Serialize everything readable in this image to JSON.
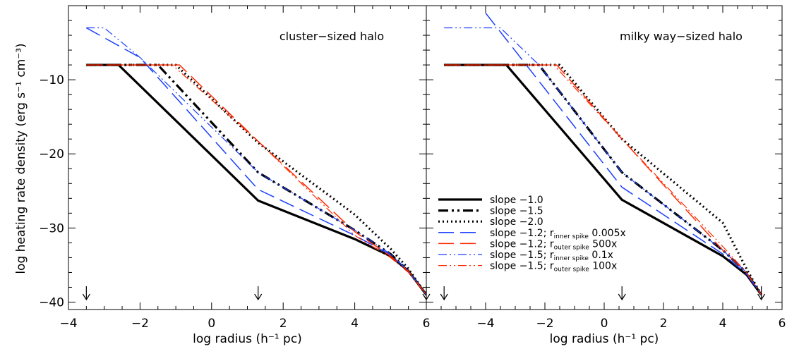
{
  "figure": {
    "ylabel": "log heating rate density (erg s⁻¹ cm⁻³)",
    "xlabel": "log radius (h⁻¹ pc)"
  },
  "legend": [
    {
      "label": "slope −1.0",
      "color": "#000000",
      "style": "solid-thick"
    },
    {
      "label": "slope −1.5",
      "color": "#000000",
      "style": "dashdotdot-thick"
    },
    {
      "label": "slope −2.0",
      "color": "#000000",
      "style": "dotted-thick"
    },
    {
      "label": "slope −1.2; r",
      "sub": "inner spike",
      "tail": " 0.005x",
      "color": "#1a3fff",
      "style": "longdash"
    },
    {
      "label": "slope −1.2; r",
      "sub": "outer spike",
      "tail": " 500x",
      "color": "#ff2a00",
      "style": "longdash"
    },
    {
      "label": "slope −1.5; r",
      "sub": "inner spike",
      "tail": " 0.1x",
      "color": "#1a3fff",
      "style": "dashdotdot"
    },
    {
      "label": "slope −1.5; r",
      "sub": "outer spike",
      "tail": " 100x",
      "color": "#ff2a00",
      "style": "dashdotdot"
    }
  ],
  "chart_data": [
    {
      "type": "line",
      "title": "",
      "annotation": "cluster−sized halo",
      "xlabel": "log radius (h⁻¹ pc)",
      "ylabel": "log heating rate density (erg s⁻¹ cm⁻³)",
      "xlim": [
        -4,
        6
      ],
      "ylim": [
        -41,
        0
      ],
      "xticks": [
        -4,
        -2,
        0,
        2,
        4,
        6
      ],
      "yticks": [
        -10,
        -20,
        -30,
        -40
      ],
      "markers_x": [
        -3.5,
        1.3,
        6.0
      ],
      "series": [
        {
          "name": "slope −1.0",
          "x": [
            -3.5,
            -2.6,
            1.3,
            4.0,
            5.0,
            5.5,
            6.0
          ],
          "y": [
            -8,
            -8,
            -26.3,
            -31.5,
            -33.8,
            -35.8,
            -39
          ]
        },
        {
          "name": "slope −1.5",
          "x": [
            -3.5,
            -1.5,
            1.3,
            4.0,
            5.0,
            5.5,
            6.0
          ],
          "y": [
            -8,
            -8,
            -22.5,
            -30.3,
            -33.5,
            -35.8,
            -39
          ]
        },
        {
          "name": "slope −2.0",
          "x": [
            -3.5,
            -1.0,
            1.3,
            4.0,
            5.0,
            5.5,
            6.0
          ],
          "y": [
            -8,
            -8,
            -18.5,
            -28.2,
            -32.8,
            -35.5,
            -39
          ]
        },
        {
          "name": "slope −1.2; r inner spike 0.005x",
          "x": [
            -3.5,
            -2.0,
            1.3,
            4.0,
            5.0,
            5.5,
            6.0
          ],
          "y": [
            -3,
            -7,
            -24.8,
            -31,
            -33.6,
            -35.8,
            -39
          ]
        },
        {
          "name": "slope −1.2; r outer spike 500x",
          "x": [
            -3.5,
            -0.9,
            1.3,
            4.0,
            5.0,
            5.5,
            6.0
          ],
          "y": [
            -8,
            -8,
            -18.3,
            -30.5,
            -33.8,
            -35.8,
            -39
          ]
        },
        {
          "name": "slope −1.5; r inner spike 0.1x",
          "x": [
            -3.5,
            -3.0,
            -2.0,
            1.3,
            4.0,
            5.0,
            5.5,
            6.0
          ],
          "y": [
            -3,
            -3,
            -7,
            -22.5,
            -30.3,
            -33.5,
            -35.8,
            -39
          ]
        },
        {
          "name": "slope −1.5; r outer spike 100x",
          "x": [
            -3.5,
            -1.1,
            1.3,
            4.0,
            5.0,
            5.5,
            6.0
          ],
          "y": [
            -8,
            -8,
            -18.3,
            -31,
            -34,
            -36,
            -39
          ]
        }
      ]
    },
    {
      "type": "line",
      "title": "",
      "annotation": "milky way−sized halo",
      "xlabel": "log radius (h⁻¹ pc)",
      "ylabel": "",
      "xlim": [
        -6,
        6
      ],
      "ylim": [
        -41,
        0
      ],
      "xticks": [
        -4,
        -2,
        0,
        2,
        4,
        6
      ],
      "yticks": [
        -10,
        -20,
        -30,
        -40
      ],
      "markers_x": [
        -5.4,
        0.6,
        5.3
      ],
      "series": [
        {
          "name": "slope −1.0",
          "x": [
            -5.4,
            -3.3,
            0.6,
            4.0,
            4.8,
            5.3
          ],
          "y": [
            -8,
            -8,
            -26.2,
            -33.8,
            -36.3,
            -39
          ]
        },
        {
          "name": "slope −1.5",
          "x": [
            -5.4,
            -2.2,
            0.6,
            4.0,
            4.8,
            5.3
          ],
          "y": [
            -8,
            -8,
            -22.5,
            -33,
            -36,
            -39
          ]
        },
        {
          "name": "slope −2.0",
          "x": [
            -5.4,
            -1.5,
            0.6,
            4.0,
            4.8,
            5.3
          ],
          "y": [
            -8,
            -8,
            -18,
            -29.3,
            -35.5,
            -39
          ]
        },
        {
          "name": "slope −1.2; r inner spike 0.005x",
          "x": [
            -4.0,
            0.6,
            4.0,
            4.8,
            5.3
          ],
          "y": [
            -1,
            -24.5,
            -33.5,
            -36.2,
            -39
          ]
        },
        {
          "name": "slope −1.2; r outer spike 500x",
          "x": [
            -5.4,
            -1.6,
            0.6,
            4.0,
            4.8,
            5.3
          ],
          "y": [
            -8,
            -8,
            -18,
            -33,
            -36,
            -39
          ]
        },
        {
          "name": "slope −1.5; r inner spike 0.1x",
          "x": [
            -5.4,
            -3.5,
            -2.2,
            0.6,
            4.0,
            4.8,
            5.3
          ],
          "y": [
            -3,
            -3,
            -8,
            -22.5,
            -33,
            -36,
            -39
          ]
        },
        {
          "name": "slope −1.5; r outer spike 100x",
          "x": [
            -5.4,
            -1.7,
            0.6,
            4.0,
            4.8,
            5.3
          ],
          "y": [
            -8,
            -8,
            -18,
            -32.5,
            -36,
            -39
          ]
        }
      ]
    }
  ]
}
